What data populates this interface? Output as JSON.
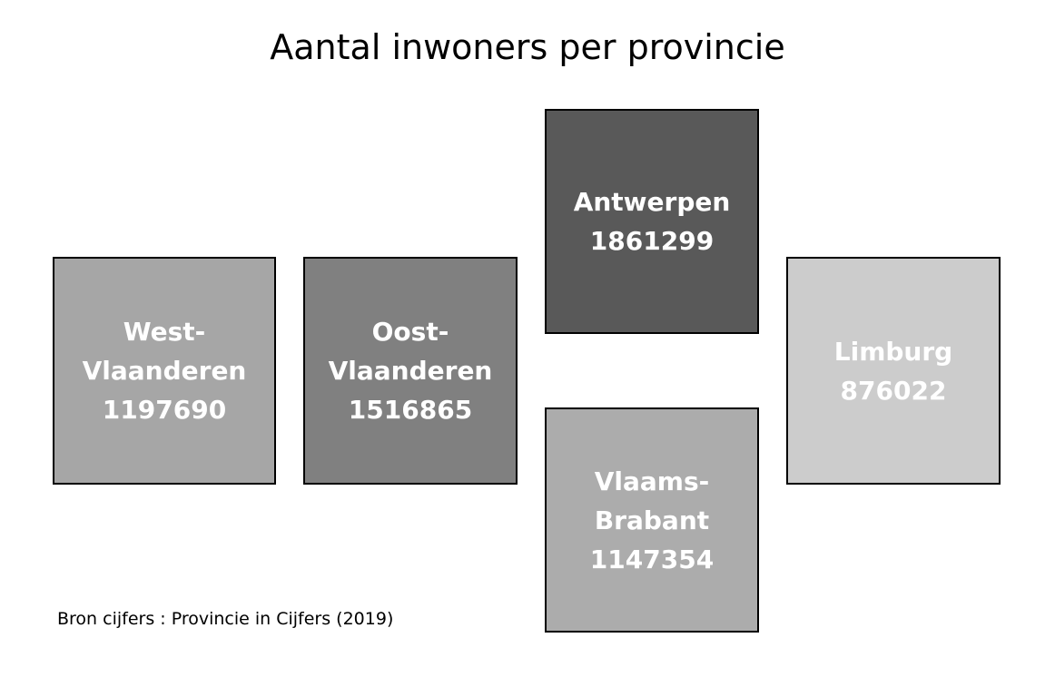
{
  "title": "Aantal inwoners per provincie",
  "source": "Bron cijfers : Provincie in Cijfers (2019)",
  "provinces": [
    {
      "name": "West-\nVlaanderen",
      "value": "1197690",
      "color": "#a6a6a6"
    },
    {
      "name": "Oost-\nVlaanderen",
      "value": "1516865",
      "color": "#808080"
    },
    {
      "name": "Antwerpen",
      "value": "1861299",
      "color": "#595959"
    },
    {
      "name": "Vlaams-\nBrabant",
      "value": "1147354",
      "color": "#acacac"
    },
    {
      "name": "Limburg",
      "value": "876022",
      "color": "#cccccc"
    }
  ]
}
